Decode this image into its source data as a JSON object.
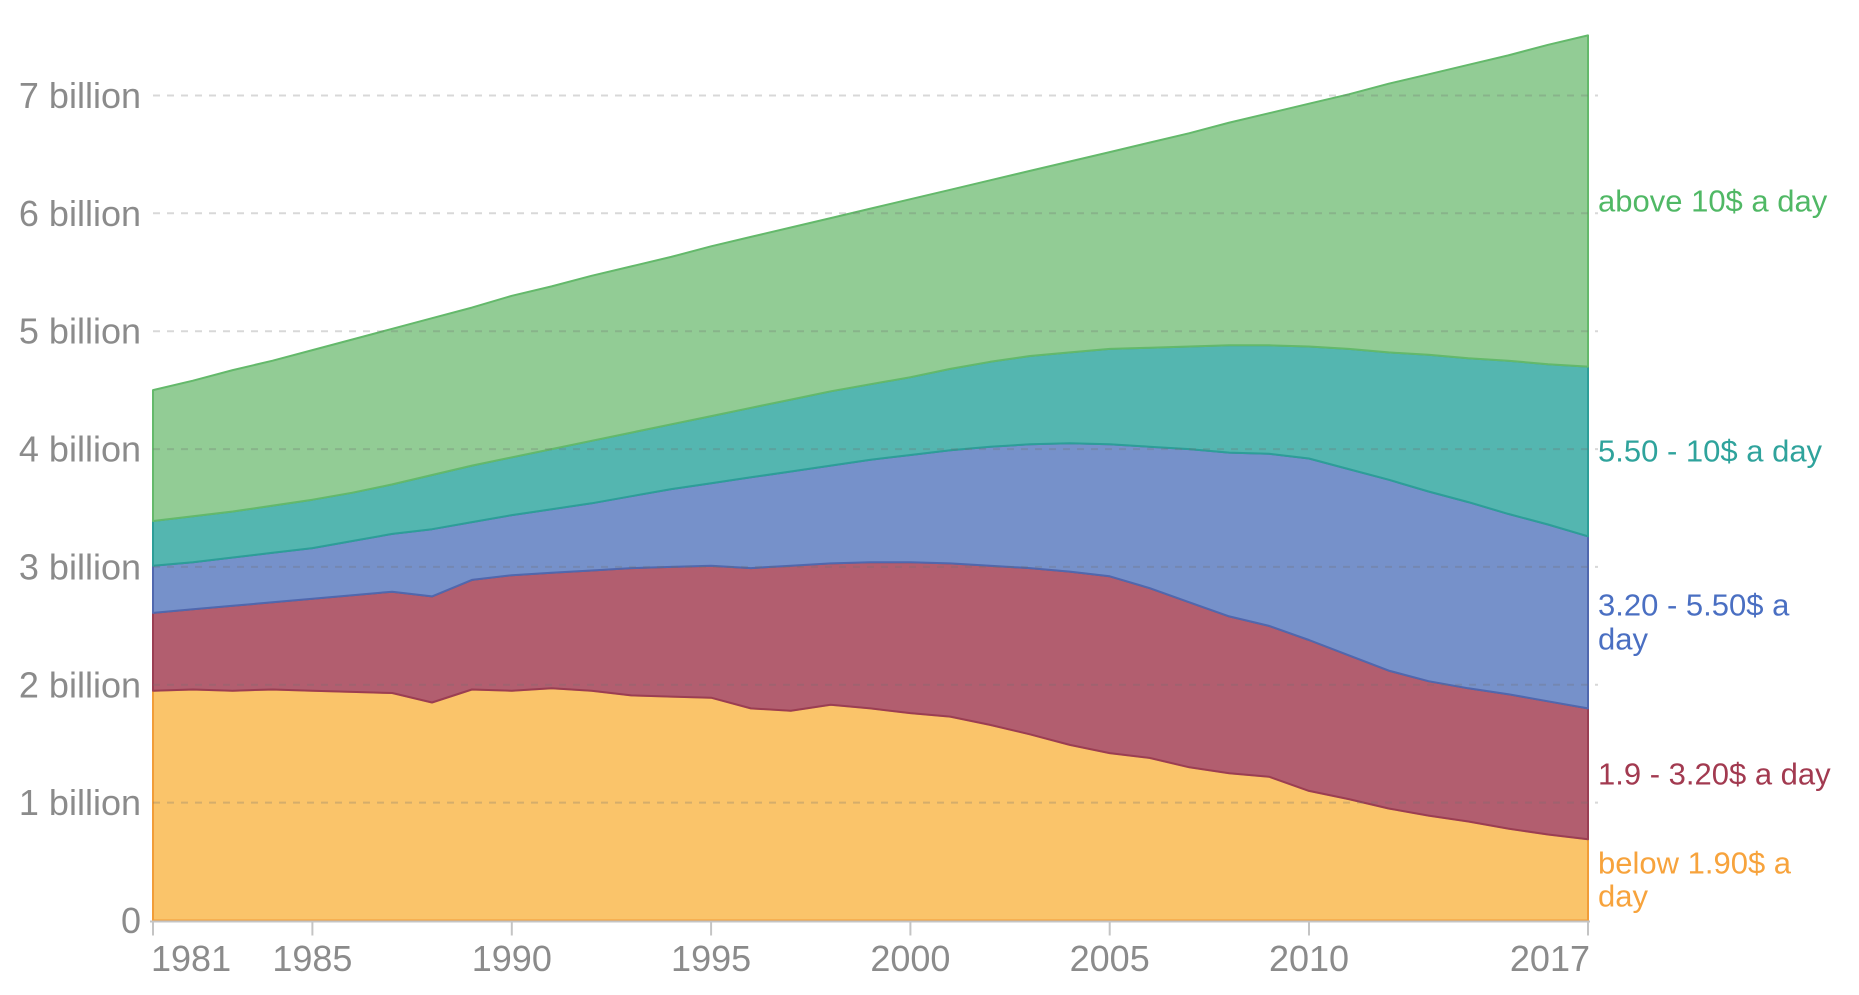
{
  "chart_data": {
    "type": "area",
    "stacked": true,
    "title": "",
    "xlabel": "",
    "ylabel": "",
    "y_unit": "billion people",
    "grid": "horizontal-dashed",
    "legend_position": "right",
    "xlim": [
      1981,
      2017
    ],
    "ylim": [
      0,
      7.6
    ],
    "x": [
      1981,
      1982,
      1983,
      1984,
      1985,
      1986,
      1987,
      1988,
      1989,
      1990,
      1991,
      1992,
      1993,
      1994,
      1995,
      1996,
      1997,
      1998,
      1999,
      2000,
      2001,
      2002,
      2003,
      2004,
      2005,
      2006,
      2007,
      2008,
      2009,
      2010,
      2011,
      2012,
      2013,
      2014,
      2015,
      2016,
      2017
    ],
    "x_ticks": [
      1981,
      1985,
      1990,
      1995,
      2000,
      2005,
      2010,
      2017
    ],
    "y_ticks": [
      {
        "value": 0,
        "label": "0"
      },
      {
        "value": 1,
        "label": "1 billion"
      },
      {
        "value": 2,
        "label": "2 billion"
      },
      {
        "value": 3,
        "label": "3 billion"
      },
      {
        "value": 4,
        "label": "4 billion"
      },
      {
        "value": 5,
        "label": "5 billion"
      },
      {
        "value": 6,
        "label": "6 billion"
      },
      {
        "value": 7,
        "label": "7 billion"
      }
    ],
    "series": [
      {
        "key": "below-1-90",
        "name": "below 1.90$ a day",
        "fill": "#FAC46A",
        "stroke": "#F19D38",
        "label_color": "#F7A33C",
        "values": [
          1.95,
          1.96,
          1.95,
          1.96,
          1.95,
          1.94,
          1.93,
          1.85,
          1.96,
          1.95,
          1.97,
          1.95,
          1.91,
          1.9,
          1.89,
          1.8,
          1.78,
          1.83,
          1.8,
          1.76,
          1.73,
          1.66,
          1.58,
          1.49,
          1.42,
          1.38,
          1.3,
          1.25,
          1.22,
          1.1,
          1.03,
          0.95,
          0.89,
          0.84,
          0.78,
          0.73,
          0.69
        ]
      },
      {
        "key": "1-90-to-3-20",
        "name": "1.9 - 3.20$ a day",
        "fill": "#B25E6F",
        "stroke": "#9A3E53",
        "label_color": "#A23A50",
        "values": [
          0.66,
          0.68,
          0.72,
          0.74,
          0.78,
          0.82,
          0.86,
          0.9,
          0.93,
          0.98,
          0.98,
          1.02,
          1.08,
          1.1,
          1.12,
          1.19,
          1.23,
          1.2,
          1.24,
          1.28,
          1.3,
          1.35,
          1.41,
          1.47,
          1.5,
          1.44,
          1.4,
          1.33,
          1.28,
          1.28,
          1.22,
          1.17,
          1.14,
          1.13,
          1.14,
          1.13,
          1.11
        ]
      },
      {
        "key": "3-20-to-5-50",
        "name": "3.20 - 5.50$ a day",
        "fill": "#7691CA",
        "stroke": "#5068AE",
        "label_color": "#4A6FC2",
        "values": [
          0.4,
          0.4,
          0.41,
          0.42,
          0.43,
          0.46,
          0.49,
          0.57,
          0.49,
          0.51,
          0.54,
          0.57,
          0.61,
          0.66,
          0.7,
          0.77,
          0.8,
          0.83,
          0.87,
          0.91,
          0.96,
          1.01,
          1.05,
          1.09,
          1.12,
          1.2,
          1.3,
          1.39,
          1.46,
          1.54,
          1.58,
          1.62,
          1.61,
          1.58,
          1.53,
          1.5,
          1.46
        ]
      },
      {
        "key": "5-50-to-10",
        "name": "5.50 - 10$ a day",
        "fill": "#54B6B0",
        "stroke": "#2D9E98",
        "label_color": "#2FA39C",
        "values": [
          0.38,
          0.39,
          0.39,
          0.4,
          0.41,
          0.41,
          0.42,
          0.46,
          0.48,
          0.49,
          0.51,
          0.53,
          0.54,
          0.55,
          0.57,
          0.59,
          0.61,
          0.63,
          0.64,
          0.66,
          0.69,
          0.72,
          0.75,
          0.77,
          0.81,
          0.84,
          0.87,
          0.91,
          0.92,
          0.95,
          1.02,
          1.08,
          1.16,
          1.22,
          1.3,
          1.36,
          1.44
        ]
      },
      {
        "key": "above-10",
        "name": "above 10$ a day",
        "fill": "#92CC95",
        "stroke": "#64B96B",
        "label_color": "#50B865",
        "values": [
          1.11,
          1.15,
          1.2,
          1.23,
          1.27,
          1.3,
          1.32,
          1.33,
          1.34,
          1.37,
          1.38,
          1.4,
          1.41,
          1.42,
          1.44,
          1.45,
          1.46,
          1.47,
          1.49,
          1.51,
          1.52,
          1.54,
          1.57,
          1.62,
          1.67,
          1.74,
          1.81,
          1.89,
          1.97,
          2.06,
          2.16,
          2.28,
          2.38,
          2.49,
          2.59,
          2.71,
          2.81
        ]
      }
    ],
    "colors": {
      "axis_text": "#8b8b8b",
      "axis_line": "#c4c4c4",
      "gridline": "rgba(110,110,110,0.27)",
      "background": "#ffffff"
    }
  }
}
